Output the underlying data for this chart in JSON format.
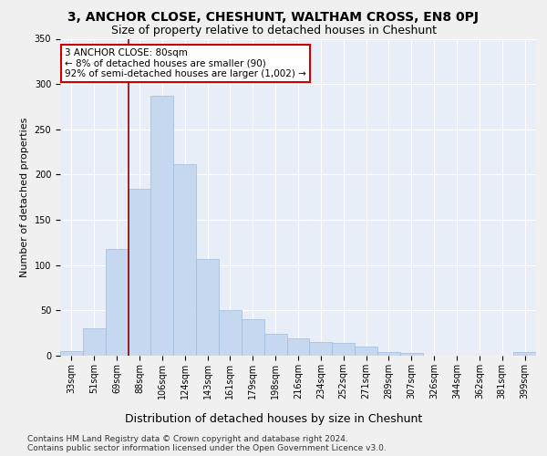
{
  "title": "3, ANCHOR CLOSE, CHESHUNT, WALTHAM CROSS, EN8 0PJ",
  "subtitle": "Size of property relative to detached houses in Cheshunt",
  "xlabel": "Distribution of detached houses by size in Cheshunt",
  "ylabel": "Number of detached properties",
  "categories": [
    "33sqm",
    "51sqm",
    "69sqm",
    "88sqm",
    "106sqm",
    "124sqm",
    "143sqm",
    "161sqm",
    "179sqm",
    "198sqm",
    "216sqm",
    "234sqm",
    "252sqm",
    "271sqm",
    "289sqm",
    "307sqm",
    "326sqm",
    "344sqm",
    "362sqm",
    "381sqm",
    "399sqm"
  ],
  "values": [
    5,
    30,
    118,
    184,
    287,
    212,
    107,
    50,
    40,
    24,
    19,
    15,
    14,
    10,
    4,
    3,
    0,
    0,
    0,
    0,
    4
  ],
  "bar_color": "#c5d8ef",
  "bar_edge_color": "#a0bcd8",
  "vline_color": "#8b0000",
  "annotation_text": "3 ANCHOR CLOSE: 80sqm\n← 8% of detached houses are smaller (90)\n92% of semi-detached houses are larger (1,002) →",
  "annotation_box_facecolor": "#ffffff",
  "annotation_box_edgecolor": "#cc0000",
  "bg_color": "#e8eef8",
  "fig_color": "#f0f0f0",
  "grid_color": "#ffffff",
  "footer1": "Contains HM Land Registry data © Crown copyright and database right 2024.",
  "footer2": "Contains public sector information licensed under the Open Government Licence v3.0.",
  "ylim": [
    0,
    350
  ],
  "title_fontsize": 10,
  "subtitle_fontsize": 9,
  "xlabel_fontsize": 9,
  "ylabel_fontsize": 8,
  "tick_fontsize": 7,
  "annotation_fontsize": 7.5,
  "footer_fontsize": 6.5
}
